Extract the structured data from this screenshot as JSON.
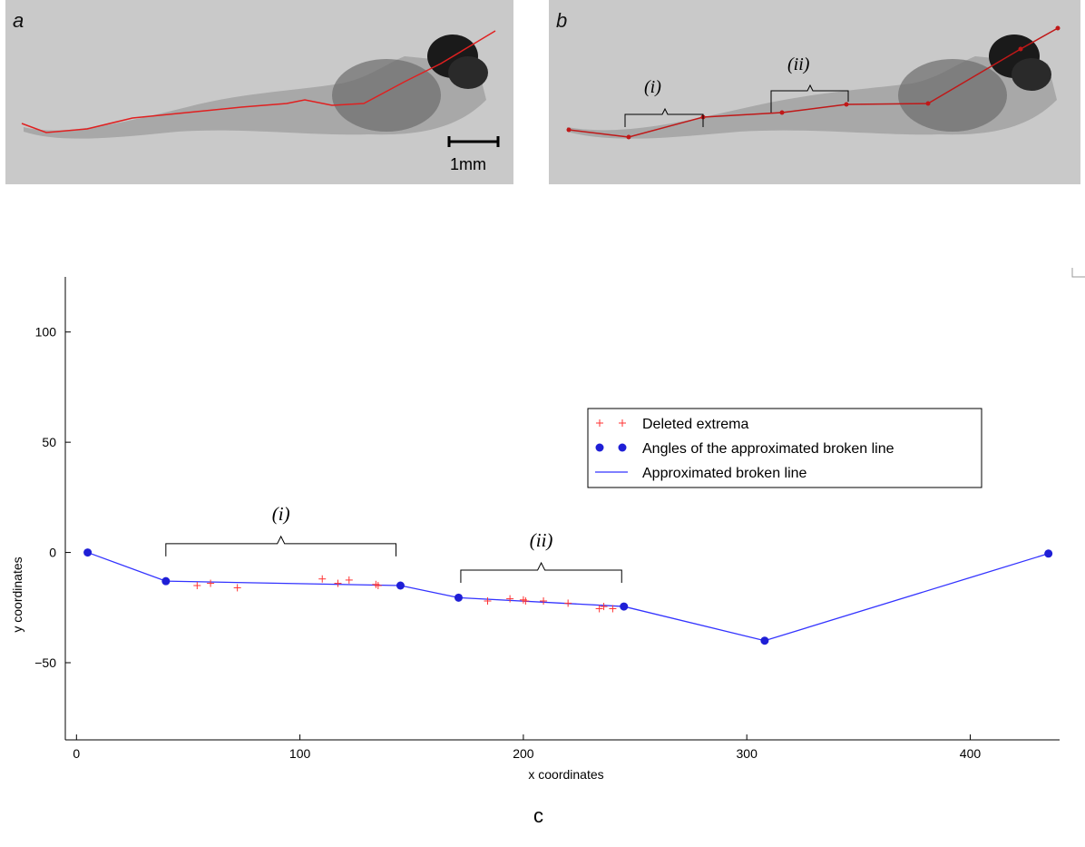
{
  "panels": {
    "a": {
      "letter": "a",
      "scale_label": "1mm"
    },
    "b": {
      "letter": "b",
      "bracket_i": "(i)",
      "bracket_ii": "(ii)"
    }
  },
  "caption": "c",
  "colors": {
    "deleted": "#ff3333",
    "angles": "#1f1fd6",
    "line": "#3333ff",
    "fish_trace": "#e02020"
  },
  "chart_data": {
    "type": "scatter",
    "xlabel": "x coordinates",
    "ylabel": "y coordinates",
    "xlim": [
      -5,
      440
    ],
    "ylim": [
      -85,
      125
    ],
    "xticks": [
      0,
      100,
      200,
      300,
      400
    ],
    "yticks": [
      100,
      50,
      0,
      -50
    ],
    "ytick_labels": [
      "100",
      "50",
      "0",
      "−50"
    ],
    "legend_position": "right",
    "series": [
      {
        "name": "Deleted extrema",
        "type": "scatter-plus",
        "points": [
          [
            54,
            -15
          ],
          [
            60,
            -14
          ],
          [
            72,
            -16
          ],
          [
            110,
            -12
          ],
          [
            117,
            -14
          ],
          [
            122,
            -12.5
          ],
          [
            134,
            -14.5
          ],
          [
            135,
            -15
          ],
          [
            184,
            -22
          ],
          [
            194,
            -21
          ],
          [
            200,
            -21.5
          ],
          [
            201,
            -22
          ],
          [
            209,
            -22
          ],
          [
            220,
            -23
          ],
          [
            234,
            -25.5
          ],
          [
            236,
            -24.5
          ],
          [
            240,
            -25.5
          ]
        ]
      },
      {
        "name": "Angles of the approximated broken line",
        "type": "scatter-dot",
        "points": [
          [
            5,
            0
          ],
          [
            40,
            -13
          ],
          [
            145,
            -15
          ],
          [
            171,
            -20.5
          ],
          [
            245,
            -24.5
          ],
          [
            308,
            -40
          ],
          [
            435,
            -0.5
          ]
        ]
      },
      {
        "name": "Approximated broken line",
        "type": "line",
        "points": [
          [
            5,
            0
          ],
          [
            40,
            -13
          ],
          [
            145,
            -15
          ],
          [
            171,
            -20.5
          ],
          [
            245,
            -24.5
          ],
          [
            308,
            -40
          ],
          [
            435,
            -0.5
          ]
        ]
      }
    ],
    "annotations": [
      {
        "label": "(i)",
        "x_start": 40,
        "x_end": 143,
        "y": 4
      },
      {
        "label": "(ii)",
        "x_start": 172,
        "x_end": 244,
        "y": -8
      }
    ]
  }
}
